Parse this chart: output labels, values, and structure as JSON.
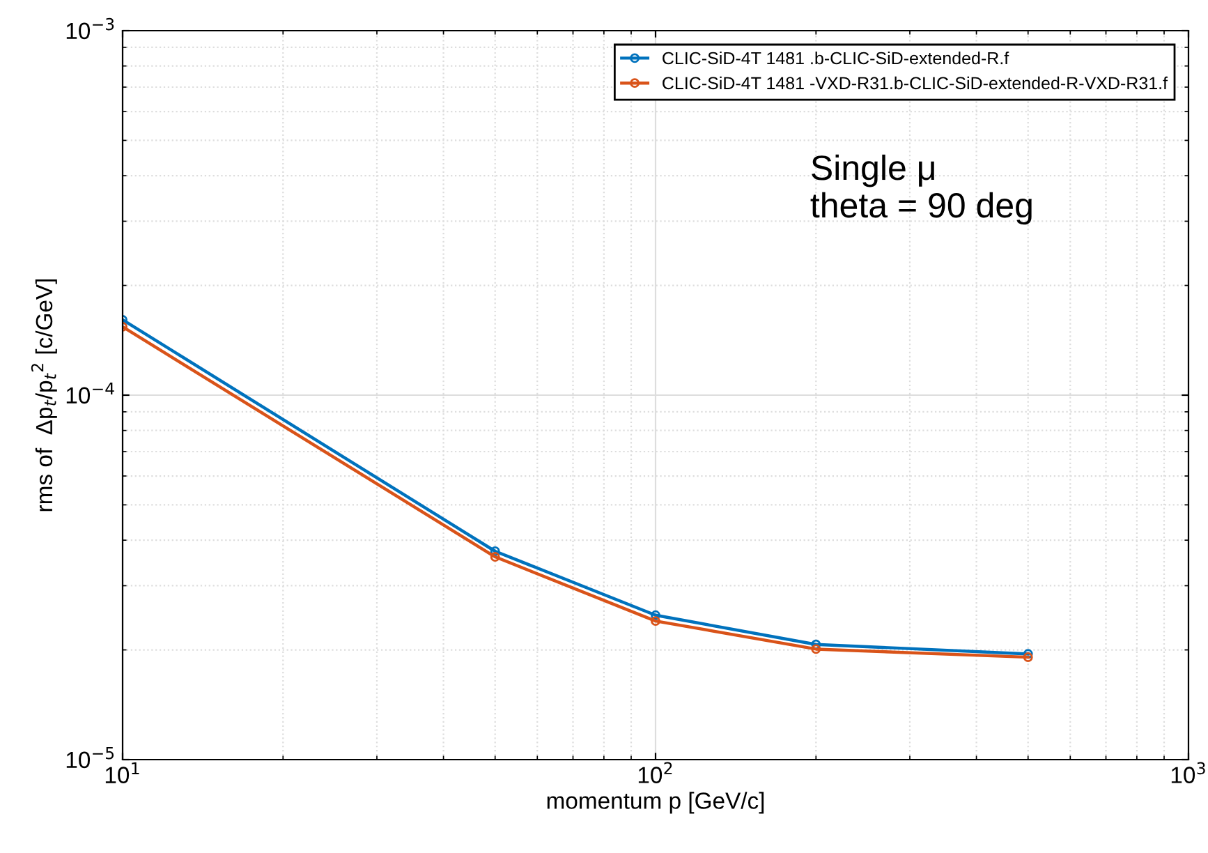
{
  "chart_data": {
    "type": "line",
    "log": "xy",
    "xlabel": "momentum p [GeV/c]",
    "ylabel": "rms of  Δp$_{t}$/p$_{t}$$^{2}$ [c/GeV]",
    "x": [
      10,
      50,
      100,
      200,
      500
    ],
    "series": [
      {
        "name": "CLIC-SiD-4T 1481 .b-CLIC-SiD-extended-R.f",
        "color": "#0072bd",
        "values": [
          0.000161,
          3.73e-05,
          2.49e-05,
          2.07e-05,
          1.95e-05
        ]
      },
      {
        "name": "CLIC-SiD-4T 1481 -VXD-R31.b-CLIC-SiD-extended-R-VXD-R31.f",
        "color": "#d95319",
        "values": [
          0.000154,
          3.6e-05,
          2.4e-05,
          2.01e-05,
          1.91e-05
        ]
      }
    ],
    "xlim": [
      10,
      1000
    ],
    "ylim": [
      1e-05,
      0.001
    ],
    "xticks": [
      {
        "value": 10,
        "label": "10$^{1}$"
      },
      {
        "value": 100,
        "label": "10$^{2}$"
      },
      {
        "value": 1000,
        "label": "10$^{3}$"
      }
    ],
    "yticks": [
      {
        "value": 1e-05,
        "label": "10$^{−5}$"
      },
      {
        "value": 0.0001,
        "label": "10$^{−4}$"
      },
      {
        "value": 0.001,
        "label": "10$^{−3}$"
      }
    ],
    "grid": true,
    "legend": "top right",
    "marker": "circle",
    "line_style": "solid",
    "annotations": [
      "Single μ\ntheta = 90 deg"
    ]
  }
}
